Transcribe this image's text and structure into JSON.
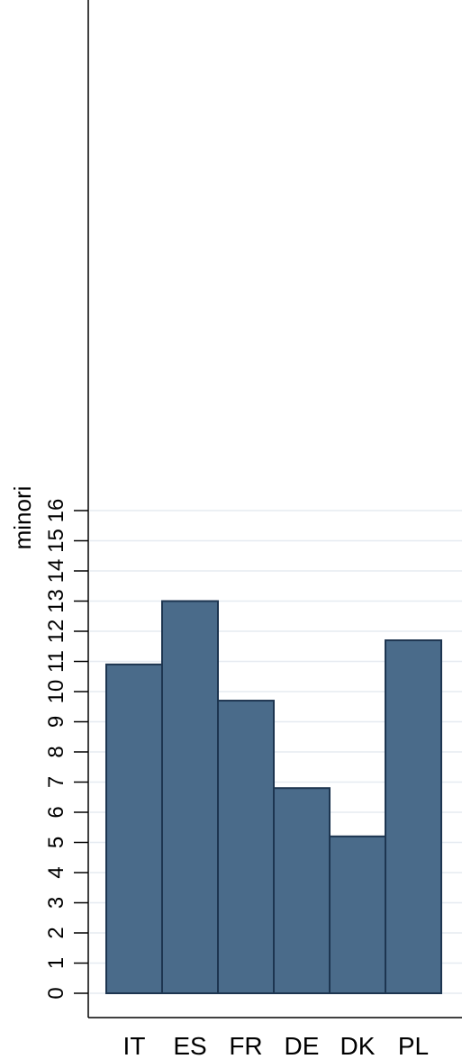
{
  "chart_data": {
    "type": "bar",
    "categories": [
      "IT",
      "ES",
      "FR",
      "DE",
      "DK",
      "PL"
    ],
    "values": [
      10.9,
      13.0,
      9.7,
      6.8,
      5.2,
      11.7
    ],
    "title": "",
    "xlabel": "",
    "ylabel": "minori",
    "ylim": [
      0,
      16
    ],
    "yticks": [
      0,
      1,
      2,
      3,
      4,
      5,
      6,
      7,
      8,
      9,
      10,
      11,
      12,
      13,
      14,
      15,
      16
    ],
    "grid": true,
    "legend": "none",
    "colors": {
      "bar_fill": "#4a6b8a",
      "bar_stroke": "#1d3550",
      "grid": "#e6ebf1",
      "axis": "#000000",
      "background": "#ffffff"
    }
  }
}
